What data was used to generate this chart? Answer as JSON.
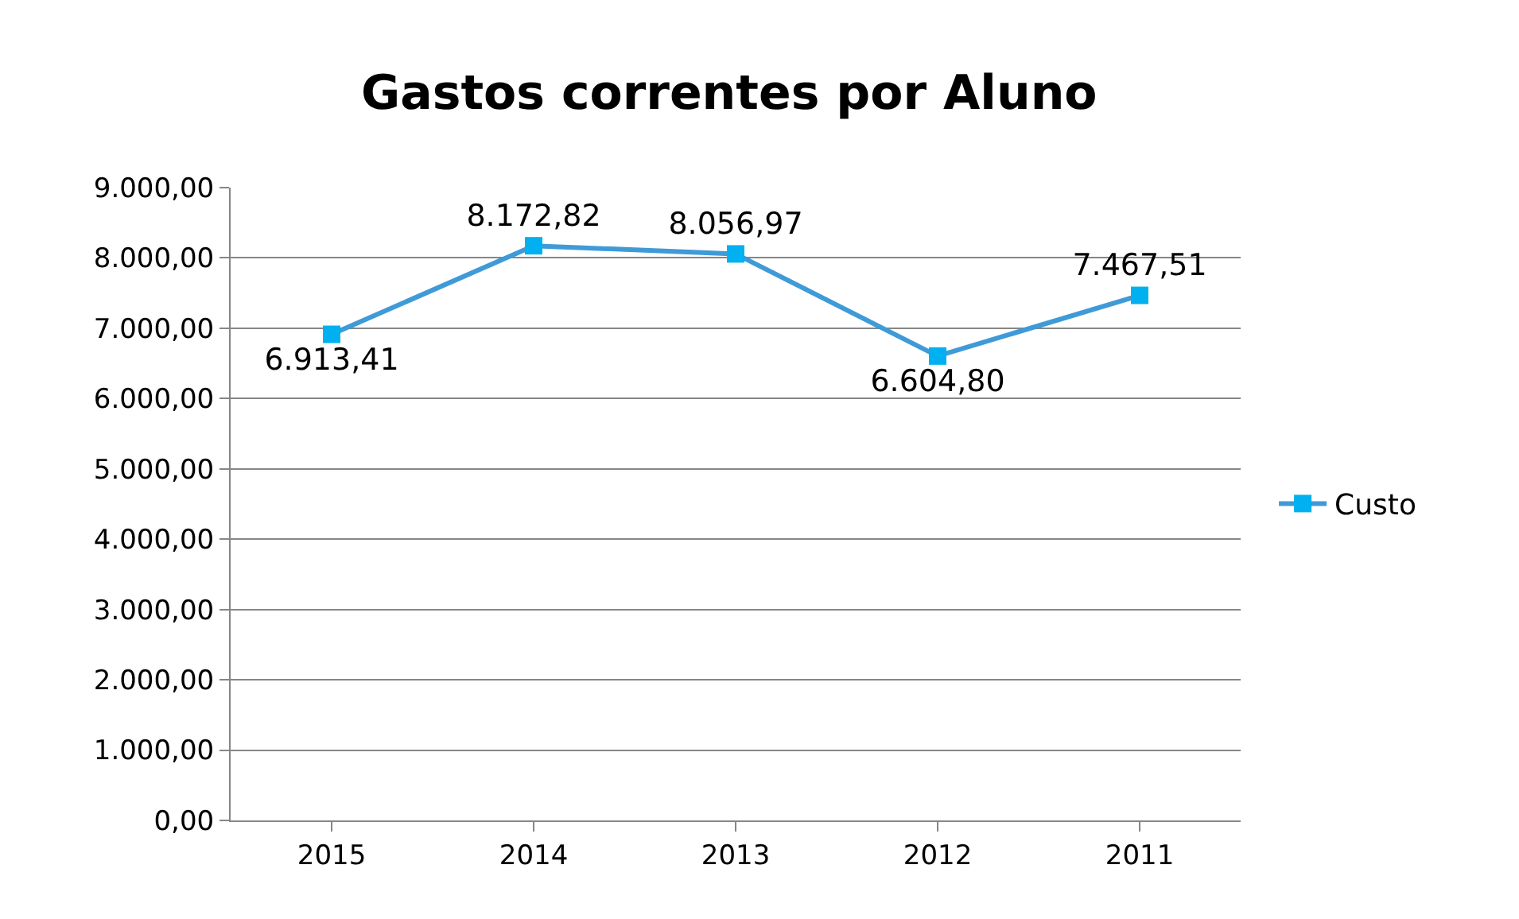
{
  "chart_data": {
    "type": "line",
    "title": "Gastos correntes por Aluno",
    "categories": [
      "2015",
      "2014",
      "2013",
      "2012",
      "2011"
    ],
    "series": [
      {
        "name": "Custo",
        "color": "#3f9ad8",
        "values": [
          6913.41,
          8172.82,
          8056.97,
          6604.8,
          7467.51
        ],
        "value_labels": [
          "6.913,41",
          "8.172,82",
          "8.056,97",
          "6.604,80",
          "7.467,51"
        ]
      }
    ],
    "ylim": [
      0,
      9000
    ],
    "yticks": [
      {
        "value": 0,
        "label": "0,00"
      },
      {
        "value": 1000,
        "label": "1.000,00"
      },
      {
        "value": 2000,
        "label": "2.000,00"
      },
      {
        "value": 3000,
        "label": "3.000,00"
      },
      {
        "value": 4000,
        "label": "4.000,00"
      },
      {
        "value": 5000,
        "label": "5.000,00"
      },
      {
        "value": 6000,
        "label": "6.000,00"
      },
      {
        "value": 7000,
        "label": "7.000,00"
      },
      {
        "value": 8000,
        "label": "8.000,00"
      },
      {
        "value": 9000,
        "label": "9.000,00"
      }
    ],
    "grid": "y",
    "legend": "right",
    "marker": "square",
    "line_style": "solid"
  }
}
